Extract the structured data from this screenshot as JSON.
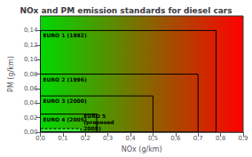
{
  "chart_data": {
    "type": "rectangles",
    "title": "NOx and PM emission standards for diesel cars",
    "xlabel": "NOx (g/km)",
    "ylabel": "PM (g/km)",
    "xlim": [
      0.0,
      0.9
    ],
    "ylim": [
      0.0,
      0.16
    ],
    "xticks": [
      {
        "value": 0.0,
        "label": "0,0"
      },
      {
        "value": 0.1,
        "label": "0,1"
      },
      {
        "value": 0.2,
        "label": "0,2"
      },
      {
        "value": 0.3,
        "label": "0,3"
      },
      {
        "value": 0.4,
        "label": "0,4"
      },
      {
        "value": 0.5,
        "label": "0,5"
      },
      {
        "value": 0.6,
        "label": "0,6"
      },
      {
        "value": 0.7,
        "label": "0,7"
      },
      {
        "value": 0.8,
        "label": "0,8"
      },
      {
        "value": 0.9,
        "label": "0,9"
      }
    ],
    "yticks": [
      {
        "value": 0.0,
        "label": "0,00"
      },
      {
        "value": 0.02,
        "label": "0,02"
      },
      {
        "value": 0.04,
        "label": "0,04"
      },
      {
        "value": 0.06,
        "label": "0,06"
      },
      {
        "value": 0.08,
        "label": "0,08"
      },
      {
        "value": 0.1,
        "label": "0,10"
      },
      {
        "value": 0.12,
        "label": "0,12"
      },
      {
        "value": 0.14,
        "label": "0,14"
      }
    ],
    "series": [
      {
        "name": "EURO 1 (1992)",
        "x": [
          0.78
        ],
        "values": [
          0.14
        ],
        "line_style": "solid"
      },
      {
        "name": "EURO 2 (1996)",
        "x": [
          0.7
        ],
        "values": [
          0.08
        ],
        "line_style": "solid"
      },
      {
        "name": "EURO 3 (2000)",
        "x": [
          0.5
        ],
        "values": [
          0.05
        ],
        "line_style": "solid"
      },
      {
        "name": "EURO 4 (2005)",
        "x": [
          0.25
        ],
        "values": [
          0.025
        ],
        "line_style": "solid"
      },
      {
        "name": "EURO 5\n(proposed\n2008)",
        "x": [
          0.18
        ],
        "values": [
          0.005
        ],
        "color": "#44ee44",
        "line_style": "dashed"
      }
    ],
    "grid": false
  }
}
